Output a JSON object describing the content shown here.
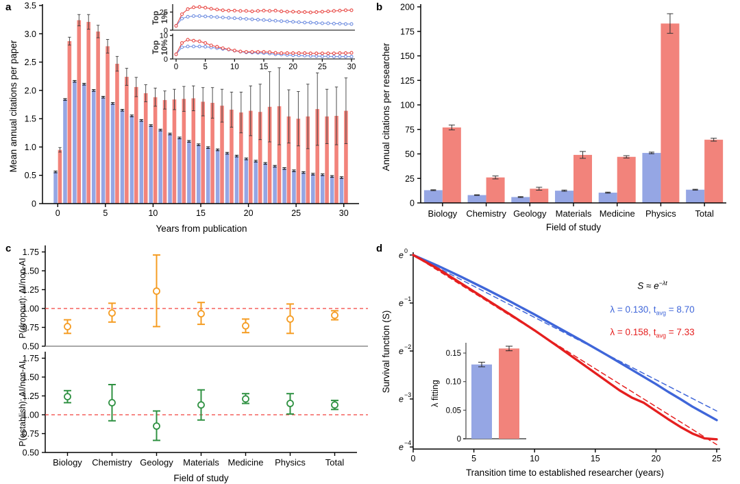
{
  "colors": {
    "bar_blue": "#95a6e4",
    "bar_red": "#f2837b",
    "line_blue": "#3f66d9",
    "line_red": "#e51f1f",
    "line_blue2": "#6d8ce0",
    "line_red2": "#e84743",
    "orange": "#f59c22",
    "green": "#2f9142",
    "ref_red": "#f2413c",
    "axis": "#000000"
  },
  "panels": {
    "a": {
      "label": "a",
      "xlabel": "Years from publication",
      "ylabel": "Mean annual citations per paper",
      "inset_top1_label": "Top\n1%",
      "inset_top10_label": "Top\n10%"
    },
    "b": {
      "label": "b",
      "xlabel": "Field of study",
      "ylabel": "Annual citations per researcher"
    },
    "c": {
      "label": "c",
      "xlabel": "Field of study",
      "ylabel_top": "P(dropout): AI/non-AI",
      "ylabel_bottom": "P(establish): AI/non-AI"
    },
    "d": {
      "label": "d",
      "xlabel": "Transition time to established researcher (years)",
      "ylabel": "Survival function (S)",
      "inset_ylabel": "λ fitting",
      "formula": {
        "base": "S ≈ e",
        "exp": "−λt"
      },
      "fit_blue": {
        "pre": "λ = 0.130, t",
        "sub": "avg",
        "post": " = 8.70"
      },
      "fit_red": {
        "pre": "λ = 0.158, t",
        "sub": "avg",
        "post": " = 7.33"
      }
    }
  },
  "chart_data": [
    {
      "id": "a_main",
      "type": "bar",
      "xlabel": "Years from publication",
      "ylabel": "Mean annual citations per paper",
      "ylim": [
        0,
        3.5
      ],
      "xticks": [
        0,
        5,
        10,
        15,
        20,
        25,
        30
      ],
      "yticks": [
        "0",
        "0.5",
        "1.0",
        "1.5",
        "2.0",
        "2.5",
        "3.0",
        "3.5"
      ],
      "years": [
        0,
        1,
        2,
        3,
        4,
        5,
        6,
        7,
        8,
        9,
        10,
        11,
        12,
        13,
        14,
        15,
        16,
        17,
        18,
        19,
        20,
        21,
        22,
        23,
        24,
        25,
        26,
        27,
        28,
        29,
        30
      ],
      "series": [
        {
          "name": "blue",
          "color": "bar_blue",
          "err": 0.015,
          "values": [
            0.56,
            1.84,
            2.16,
            2.11,
            2.0,
            1.88,
            1.77,
            1.65,
            1.55,
            1.47,
            1.38,
            1.3,
            1.23,
            1.16,
            1.1,
            1.04,
            0.99,
            0.95,
            0.89,
            0.84,
            0.79,
            0.75,
            0.71,
            0.66,
            0.62,
            0.58,
            0.55,
            0.52,
            0.51,
            0.48,
            0.46
          ]
        },
        {
          "name": "red",
          "color": "bar_red",
          "values": [
            0.95,
            2.87,
            3.24,
            3.21,
            3.04,
            2.78,
            2.47,
            2.24,
            2.06,
            1.95,
            1.88,
            1.83,
            1.84,
            1.85,
            1.86,
            1.8,
            1.78,
            1.73,
            1.66,
            1.61,
            1.64,
            1.62,
            1.71,
            1.72,
            1.54,
            1.5,
            1.54,
            1.67,
            1.54,
            1.55,
            1.64
          ],
          "err": [
            0.04,
            0.07,
            0.1,
            0.13,
            0.11,
            0.12,
            0.13,
            0.15,
            0.17,
            0.15,
            0.16,
            0.16,
            0.18,
            0.22,
            0.22,
            0.25,
            0.27,
            0.29,
            0.31,
            0.36,
            0.44,
            0.49,
            0.62,
            0.68,
            0.47,
            0.48,
            0.57,
            0.64,
            0.48,
            0.51,
            0.58
          ]
        }
      ]
    },
    {
      "id": "a_inset_top1",
      "type": "line",
      "label": "Top 1%",
      "ylim": [
        0,
        35
      ],
      "yticks": [
        0,
        25
      ],
      "series": [
        {
          "name": "blue",
          "color": "line_blue2",
          "err": 0.5,
          "values": [
            6,
            16,
            18.5,
            19.5,
            19.5,
            19,
            18.5,
            18,
            17.5,
            17,
            16.5,
            16,
            15.5,
            15,
            14.5,
            14,
            13.5,
            13,
            12.5,
            12,
            11.5,
            11,
            10.5,
            10.5,
            10,
            9.5,
            9.5,
            9,
            9,
            8.5,
            8.5
          ]
        },
        {
          "name": "red",
          "color": "line_red2",
          "err": 1.3,
          "values": [
            6,
            22,
            29,
            31.5,
            32,
            31,
            29.5,
            28.5,
            27.5,
            27,
            27,
            26.5,
            26.5,
            26,
            26.5,
            27,
            26.5,
            27,
            26,
            25.5,
            25.5,
            25,
            25,
            24.5,
            25,
            25.5,
            26,
            26.5,
            27,
            27.5,
            27.5
          ]
        }
      ]
    },
    {
      "id": "a_inset_top10",
      "type": "line",
      "label": "Top 10%",
      "ylim": [
        0,
        10
      ],
      "yticks": [
        0,
        10
      ],
      "xticks": [
        0,
        5,
        10,
        15,
        20,
        25,
        30
      ],
      "series": [
        {
          "name": "blue",
          "color": "line_blue2",
          "err": 0.25,
          "values": [
            2,
            5,
            5.3,
            5.3,
            5.3,
            5.2,
            4.9,
            4.6,
            4.3,
            4,
            3.5,
            3.1,
            2.8,
            2.7,
            2.6,
            2.5,
            2.3,
            2,
            1.9,
            1.7,
            1.6,
            1.5,
            1.4,
            1.3,
            1.2,
            1.1,
            1.1,
            1,
            1,
            1,
            1
          ]
        },
        {
          "name": "red",
          "color": "line_red2",
          "err": 0.35,
          "values": [
            2,
            6.8,
            8.2,
            7.8,
            7.5,
            6.8,
            5.8,
            5.2,
            4.6,
            4.1,
            3.6,
            3.2,
            3,
            3,
            3,
            3,
            2.9,
            2.6,
            2.5,
            2.5,
            2.5,
            2.5,
            2.5,
            2.4,
            2.4,
            2.4,
            2.4,
            2.4,
            2.5,
            2.5,
            2.6
          ]
        }
      ]
    },
    {
      "id": "b",
      "type": "bar",
      "categories": [
        "Biology",
        "Chemistry",
        "Geology",
        "Materials",
        "Medicine",
        "Physics",
        "Total"
      ],
      "xlabel": "Field of study",
      "ylabel": "Annual citations per researcher",
      "ylim": [
        0,
        200
      ],
      "yticks": [
        0,
        25,
        50,
        75,
        100,
        125,
        150,
        175,
        200
      ],
      "series": [
        {
          "name": "blue",
          "color": "bar_blue",
          "values": [
            13,
            8,
            6,
            12.5,
            10.5,
            51,
            13.5
          ],
          "err": [
            0.4,
            0.3,
            0.4,
            0.6,
            0.5,
            0.8,
            0.4
          ]
        },
        {
          "name": "red",
          "color": "bar_red",
          "values": [
            77,
            26,
            14.5,
            49,
            47,
            183,
            64.5
          ],
          "err": [
            2.5,
            1.5,
            1.5,
            3.5,
            1.2,
            10,
            1.5
          ]
        }
      ]
    },
    {
      "id": "c_dropout",
      "type": "scatter",
      "ylabel": "P(dropout): AI/non-AI",
      "color": "orange",
      "ylim": [
        0.5,
        1.8
      ],
      "yticks": [
        "1.75",
        "1.50",
        "1.25",
        "1.00",
        "0.75",
        "0.50"
      ],
      "refline": 1.0,
      "categories": [
        "Biology",
        "Chemistry",
        "Geology",
        "Materials",
        "Medicine",
        "Physics",
        "Total"
      ],
      "values": [
        0.76,
        0.94,
        1.23,
        0.93,
        0.77,
        0.86,
        0.91
      ],
      "lo": [
        0.67,
        0.82,
        0.76,
        0.79,
        0.68,
        0.67,
        0.85
      ],
      "hi": [
        0.85,
        1.07,
        1.71,
        1.08,
        0.86,
        1.06,
        0.97
      ]
    },
    {
      "id": "c_establish",
      "type": "scatter",
      "ylabel": "P(establish): AI/non-AI",
      "xlabel": "Field of study",
      "color": "green",
      "ylim": [
        0.5,
        1.8
      ],
      "yticks": [
        "1.75",
        "1.50",
        "1.25",
        "1.00",
        "0.75",
        "0.50"
      ],
      "refline": 1.0,
      "categories": [
        "Biology",
        "Chemistry",
        "Geology",
        "Materials",
        "Medicine",
        "Physics",
        "Total"
      ],
      "values": [
        1.24,
        1.16,
        0.85,
        1.13,
        1.21,
        1.15,
        1.13
      ],
      "lo": [
        1.16,
        0.92,
        0.66,
        0.93,
        1.15,
        1.01,
        1.07
      ],
      "hi": [
        1.32,
        1.4,
        1.05,
        1.33,
        1.28,
        1.28,
        1.19
      ]
    },
    {
      "id": "d_main",
      "type": "line",
      "xlabel": "Transition time to established researcher (years)",
      "ylabel": "Survival function (S)",
      "xticks": [
        0,
        5,
        10,
        15,
        20,
        25
      ],
      "yticks": [
        "0",
        "−1",
        "−2",
        "−3",
        "−4"
      ],
      "series": [
        {
          "name": "blue_solid",
          "color": "line_blue",
          "points": [
            [
              0,
              0
            ],
            [
              2,
              -0.22
            ],
            [
              4,
              -0.46
            ],
            [
              6,
              -0.71
            ],
            [
              8,
              -0.97
            ],
            [
              10,
              -1.24
            ],
            [
              12,
              -1.52
            ],
            [
              14,
              -1.8
            ],
            [
              16,
              -2.09
            ],
            [
              18,
              -2.39
            ],
            [
              20,
              -2.69
            ],
            [
              21,
              -2.85
            ],
            [
              22,
              -3.0
            ],
            [
              23,
              -3.16
            ],
            [
              24,
              -3.3
            ],
            [
              25,
              -3.44
            ]
          ]
        },
        {
          "name": "red_solid",
          "color": "line_red",
          "points": [
            [
              0,
              0
            ],
            [
              2,
              -0.28
            ],
            [
              4,
              -0.6
            ],
            [
              6,
              -0.92
            ],
            [
              8,
              -1.24
            ],
            [
              10,
              -1.57
            ],
            [
              12,
              -1.92
            ],
            [
              14,
              -2.28
            ],
            [
              16,
              -2.64
            ],
            [
              17,
              -2.82
            ],
            [
              18,
              -2.97
            ],
            [
              19,
              -3.08
            ],
            [
              20,
              -3.25
            ],
            [
              21,
              -3.42
            ],
            [
              22,
              -3.58
            ],
            [
              23,
              -3.72
            ],
            [
              24,
              -3.82
            ],
            [
              25,
              -3.84
            ]
          ]
        }
      ],
      "fits": [
        {
          "name": "blue_fit",
          "color": "line_blue",
          "lambda": 0.13,
          "t_avg": 8.7
        },
        {
          "name": "red_fit",
          "color": "line_red",
          "lambda": 0.158,
          "t_avg": 7.33
        }
      ]
    },
    {
      "id": "d_inset",
      "type": "bar",
      "ylabel": "λ fitting",
      "yticks": [
        "0",
        "0.05",
        "0.10",
        "0.15"
      ],
      "ytickvals": [
        0,
        0.05,
        0.1,
        0.15
      ],
      "categories": [
        "blue",
        "red"
      ],
      "values": [
        0.13,
        0.158
      ],
      "errs": [
        0.004,
        0.004
      ],
      "colors": [
        "bar_blue",
        "bar_red"
      ]
    }
  ]
}
